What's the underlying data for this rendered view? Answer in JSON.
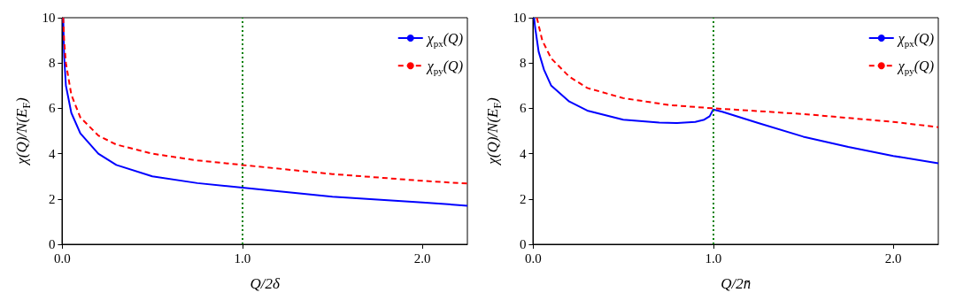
{
  "chart_data": [
    {
      "type": "line",
      "xlabel": "Q/2δ",
      "ylabel": "χ(Q)/N(E$_{F}$)",
      "xlim": [
        0,
        2.25
      ],
      "ylim": [
        0,
        10
      ],
      "xticks": [
        {
          "value": 0,
          "label": "0.0"
        },
        {
          "value": 1,
          "label": "1.0"
        },
        {
          "value": 2,
          "label": "2.0"
        }
      ],
      "yticks": [
        0,
        2,
        4,
        6,
        8,
        10
      ],
      "grid": false,
      "legend": "top right",
      "marker": "none",
      "ref_lines": [
        {
          "axis": "x",
          "value": 1,
          "color": "#008000",
          "line_style": "dotted"
        }
      ],
      "series": [
        {
          "name": "χ$_{px}$(Q)",
          "color": "#0000ff",
          "line_style": "solid",
          "x": [
            0.005,
            0.01,
            0.02,
            0.05,
            0.1,
            0.2,
            0.3,
            0.5,
            0.75,
            1.0,
            1.5,
            2.0,
            2.25
          ],
          "values": [
            10,
            8.3,
            7.0,
            5.8,
            4.9,
            4.0,
            3.5,
            3.0,
            2.7,
            2.5,
            2.1,
            1.85,
            1.7
          ]
        },
        {
          "name": "χ$_{py}$(Q)",
          "color": "#ff0000",
          "line_style": "dashed",
          "x": [
            0.005,
            0.01,
            0.02,
            0.05,
            0.1,
            0.2,
            0.3,
            0.5,
            0.75,
            1.0,
            1.5,
            2.0,
            2.25
          ],
          "values": [
            10,
            9.0,
            8.0,
            6.6,
            5.6,
            4.8,
            4.4,
            4.0,
            3.7,
            3.5,
            3.1,
            2.8,
            2.68
          ]
        }
      ]
    },
    {
      "type": "line",
      "xlabel": "Q/2n̄",
      "ylabel": "χ(Q)/N(E$_{F}$)",
      "xlim": [
        0,
        2.25
      ],
      "ylim": [
        0,
        10
      ],
      "xticks": [
        {
          "value": 0,
          "label": "0.0"
        },
        {
          "value": 1,
          "label": "1.0"
        },
        {
          "value": 2,
          "label": "2.0"
        }
      ],
      "yticks": [
        0,
        2,
        4,
        6,
        8,
        10
      ],
      "grid": false,
      "legend": "top right",
      "marker": "none",
      "ref_lines": [
        {
          "axis": "x",
          "value": 1,
          "color": "#008000",
          "line_style": "dotted"
        }
      ],
      "series": [
        {
          "name": "χ$_{px}$(Q)",
          "color": "#0000ff",
          "line_style": "solid",
          "x": [
            0.005,
            0.01,
            0.03,
            0.06,
            0.1,
            0.2,
            0.3,
            0.5,
            0.7,
            0.8,
            0.9,
            0.95,
            0.98,
            1.0,
            1.05,
            1.25,
            1.5,
            1.75,
            2.0,
            2.25
          ],
          "values": [
            10,
            9.6,
            8.5,
            7.7,
            7.0,
            6.3,
            5.9,
            5.5,
            5.37,
            5.35,
            5.4,
            5.5,
            5.65,
            5.95,
            5.85,
            5.35,
            4.75,
            4.3,
            3.9,
            3.57
          ]
        },
        {
          "name": "χ$_{py}$(Q)",
          "color": "#ff0000",
          "line_style": "dashed",
          "x": [
            0.02,
            0.05,
            0.1,
            0.2,
            0.3,
            0.5,
            0.75,
            1.0,
            1.5,
            2.0,
            2.25
          ],
          "values": [
            10,
            9.0,
            8.2,
            7.4,
            6.9,
            6.45,
            6.15,
            6.0,
            5.75,
            5.4,
            5.17
          ]
        }
      ]
    }
  ]
}
